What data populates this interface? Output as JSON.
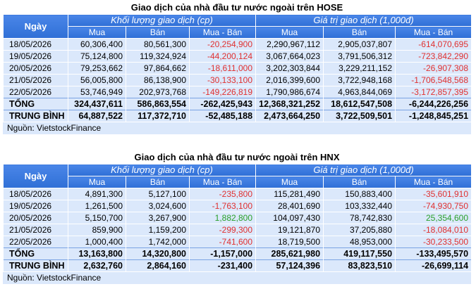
{
  "tables": [
    {
      "title": "Giao dịch của nhà đầu tư nước ngoài trên HOSE",
      "header": {
        "ngay": "Ngày",
        "group_volume": "Khối lượng giao dịch (cp)",
        "group_value": "Giá trị giao dịch (1,000đ)",
        "mua": "Mua",
        "ban": "Bán",
        "mua_ban": "Mua - Bán"
      },
      "rows": [
        {
          "date": "18/05/2026",
          "vol_buy": "60,306,400",
          "vol_sell": "80,561,300",
          "vol_net": "-20,254,900",
          "vol_net_sign": "neg",
          "val_buy": "2,290,967,112",
          "val_sell": "2,905,037,807",
          "val_net": "-614,070,695",
          "val_net_sign": "neg"
        },
        {
          "date": "19/05/2026",
          "vol_buy": "75,124,800",
          "vol_sell": "119,324,924",
          "vol_net": "-44,200,124",
          "vol_net_sign": "neg",
          "val_buy": "3,067,664,023",
          "val_sell": "3,791,506,312",
          "val_net": "-723,842,290",
          "val_net_sign": "neg"
        },
        {
          "date": "20/05/2026",
          "vol_buy": "79,253,662",
          "vol_sell": "97,864,662",
          "vol_net": "-18,611,000",
          "vol_net_sign": "neg",
          "val_buy": "3,202,303,844",
          "val_sell": "3,229,211,152",
          "val_net": "-26,907,308",
          "val_net_sign": "neg"
        },
        {
          "date": "21/05/2026",
          "vol_buy": "56,005,800",
          "vol_sell": "86,138,900",
          "vol_net": "-30,133,100",
          "vol_net_sign": "neg",
          "val_buy": "2,016,399,600",
          "val_sell": "3,722,948,168",
          "val_net": "-1,706,548,568",
          "val_net_sign": "neg"
        },
        {
          "date": "22/05/2026",
          "vol_buy": "53,746,949",
          "vol_sell": "202,973,768",
          "vol_net": "-149,226,819",
          "vol_net_sign": "neg",
          "val_buy": "1,790,986,674",
          "val_sell": "4,963,844,069",
          "val_net": "-3,172,857,395",
          "val_net_sign": "neg"
        }
      ],
      "totals": [
        {
          "date": "TỔNG",
          "vol_buy": "324,437,611",
          "vol_sell": "586,863,554",
          "vol_net": "-262,425,943",
          "vol_net_sign": "neg",
          "val_buy": "12,368,321,252",
          "val_sell": "18,612,547,508",
          "val_net": "-6,244,226,256",
          "val_net_sign": "neg"
        },
        {
          "date": "TRUNG BÌNH",
          "vol_buy": "64,887,522",
          "vol_sell": "117,372,710",
          "vol_net": "-52,485,188",
          "vol_net_sign": "neg",
          "val_buy": "2,473,664,250",
          "val_sell": "3,722,509,501",
          "val_net": "-1,248,845,251",
          "val_net_sign": "neg"
        }
      ],
      "source": "Nguồn: VietstockFinance"
    },
    {
      "title": "Giao dịch của nhà đầu tư nước ngoài trên HNX",
      "header": {
        "ngay": "Ngày",
        "group_volume": "Khối lượng giao dịch (cp)",
        "group_value": "Giá trị giao dịch (1,000đ)",
        "mua": "Mua",
        "ban": "Bán",
        "mua_ban": "Mua - Bán"
      },
      "rows": [
        {
          "date": "18/05/2026",
          "vol_buy": "4,891,300",
          "vol_sell": "5,127,100",
          "vol_net": "-235,800",
          "vol_net_sign": "neg",
          "val_buy": "115,281,490",
          "val_sell": "150,883,400",
          "val_net": "-35,601,910",
          "val_net_sign": "neg"
        },
        {
          "date": "19/05/2026",
          "vol_buy": "1,261,500",
          "vol_sell": "3,024,600",
          "vol_net": "-1,763,100",
          "vol_net_sign": "neg",
          "val_buy": "28,401,690",
          "val_sell": "103,332,440",
          "val_net": "-74,930,750",
          "val_net_sign": "neg"
        },
        {
          "date": "20/05/2026",
          "vol_buy": "5,150,700",
          "vol_sell": "3,267,900",
          "vol_net": "1,882,800",
          "vol_net_sign": "pos",
          "val_buy": "104,097,430",
          "val_sell": "78,742,830",
          "val_net": "25,354,600",
          "val_net_sign": "pos"
        },
        {
          "date": "21/05/2026",
          "vol_buy": "859,900",
          "vol_sell": "1,159,200",
          "vol_net": "-299,300",
          "vol_net_sign": "neg",
          "val_buy": "19,121,870",
          "val_sell": "37,205,880",
          "val_net": "-18,084,010",
          "val_net_sign": "neg"
        },
        {
          "date": "22/05/2026",
          "vol_buy": "1,000,400",
          "vol_sell": "1,742,000",
          "vol_net": "-741,600",
          "vol_net_sign": "neg",
          "val_buy": "18,719,500",
          "val_sell": "48,953,000",
          "val_net": "-30,233,500",
          "val_net_sign": "neg"
        }
      ],
      "totals": [
        {
          "date": "TỔNG",
          "vol_buy": "13,163,800",
          "vol_sell": "14,320,800",
          "vol_net": "-1,157,000",
          "vol_net_sign": "neg",
          "val_buy": "285,621,980",
          "val_sell": "419,117,550",
          "val_net": "-133,495,570",
          "val_net_sign": "neg"
        },
        {
          "date": "TRUNG BÌNH",
          "vol_buy": "2,632,760",
          "vol_sell": "2,864,160",
          "vol_net": "-231,400",
          "vol_net_sign": "neg",
          "val_buy": "57,124,396",
          "val_sell": "83,823,510",
          "val_net": "-26,699,114",
          "val_net_sign": "neg"
        }
      ],
      "source": "Nguồn: VietstockFinance"
    }
  ]
}
